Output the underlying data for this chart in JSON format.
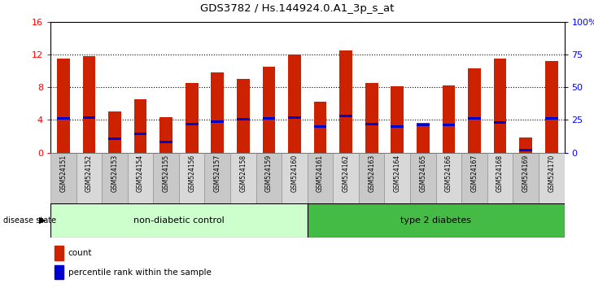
{
  "title": "GDS3782 / Hs.144924.0.A1_3p_s_at",
  "samples": [
    "GSM524151",
    "GSM524152",
    "GSM524153",
    "GSM524154",
    "GSM524155",
    "GSM524156",
    "GSM524157",
    "GSM524158",
    "GSM524159",
    "GSM524160",
    "GSM524161",
    "GSM524162",
    "GSM524163",
    "GSM524164",
    "GSM524165",
    "GSM524166",
    "GSM524167",
    "GSM524168",
    "GSM524169",
    "GSM524170"
  ],
  "counts": [
    11.5,
    11.8,
    5.0,
    6.5,
    4.3,
    8.5,
    9.8,
    9.0,
    10.5,
    12.0,
    6.2,
    12.5,
    8.5,
    8.1,
    3.6,
    8.2,
    10.3,
    11.5,
    1.8,
    11.2
  ],
  "percentile_rank": [
    4.2,
    4.3,
    1.7,
    2.3,
    1.3,
    3.5,
    3.8,
    4.1,
    4.2,
    4.3,
    3.2,
    4.5,
    3.5,
    3.2,
    3.4,
    3.4,
    4.2,
    3.7,
    0.3,
    4.2
  ],
  "group_labels": [
    "non-diabetic control",
    "type 2 diabetes"
  ],
  "group_colors_light": "#ccffcc",
  "group_colors_dark": "#44bb44",
  "bar_color": "#cc2200",
  "blue_color": "#0000cc",
  "ylim_left": [
    0,
    16
  ],
  "ylim_right": [
    0,
    100
  ],
  "yticks_left": [
    0,
    4,
    8,
    12,
    16
  ],
  "yticks_right": [
    0,
    25,
    50,
    75,
    100
  ],
  "ytick_right_labels": [
    "0",
    "25",
    "50",
    "75",
    "100%"
  ],
  "bar_width": 0.5,
  "blue_bar_height": 0.35
}
